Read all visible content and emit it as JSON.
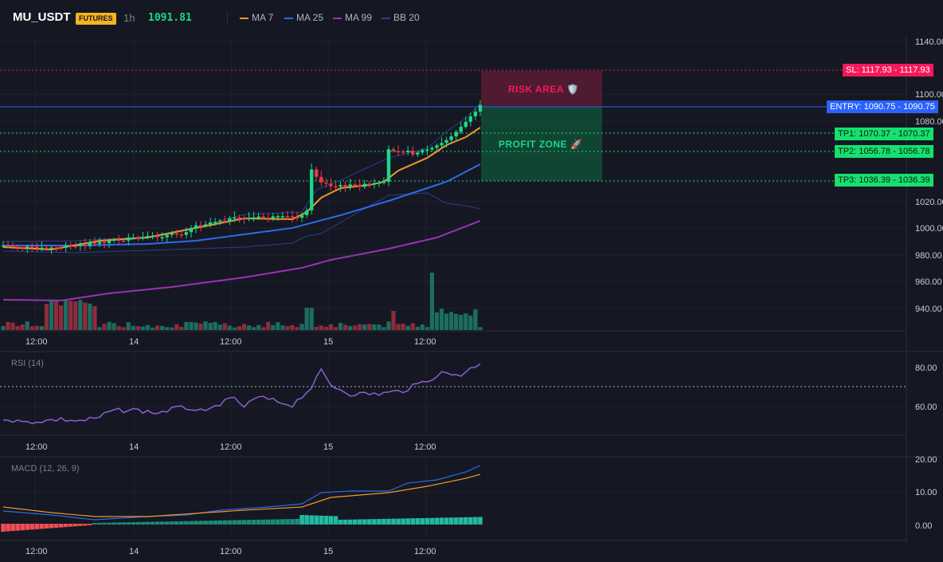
{
  "header": {
    "symbol": "MU_USDT",
    "market_badge": "FUTURES",
    "timeframe": "1h",
    "last_price": "1091.81"
  },
  "legend": [
    {
      "label": "MA 7",
      "color": "#f0962c"
    },
    {
      "label": "MA 25",
      "color": "#2d6be6"
    },
    {
      "label": "MA 99",
      "color": "#9b32b4"
    },
    {
      "label": "BB 20",
      "color": "#2c3f8c"
    }
  ],
  "colors": {
    "up": "#1ad889",
    "down": "#f23645",
    "volume_up": "#1b6e61",
    "volume_down": "#8e2c3c",
    "background": "#151822"
  },
  "price_axis": [
    "1140.00",
    "1100.00",
    "1080.00",
    "1020.00",
    "1000.00",
    "980.00",
    "960.00",
    "940.00"
  ],
  "time_axis": [
    "12:00",
    "14",
    "12:00",
    "15",
    "12:00"
  ],
  "levels": {
    "sl": "SL: 1117.93",
    "sl_value": "1117.93",
    "entry": "ENTRY: 1090.75",
    "entry_value": "1090.75",
    "tp1": "TP1: 1070.37",
    "tp1_value": "1070.37",
    "tp2": "TP2: 1056.78",
    "tp2_value": "1056.78",
    "tp3": "TP3: 1036.39",
    "tp3_value": "1036.39"
  },
  "zones": {
    "risk": "RISK AREA 🛡️",
    "profit": "PROFIT ZONE 🚀"
  },
  "rsi": {
    "title": "RSI (14)",
    "axis": [
      "80.00",
      "60.00"
    ]
  },
  "macd": {
    "title": "MACD (12, 26, 9)",
    "axis": [
      "20.00",
      "10.00",
      "0.00"
    ]
  }
}
